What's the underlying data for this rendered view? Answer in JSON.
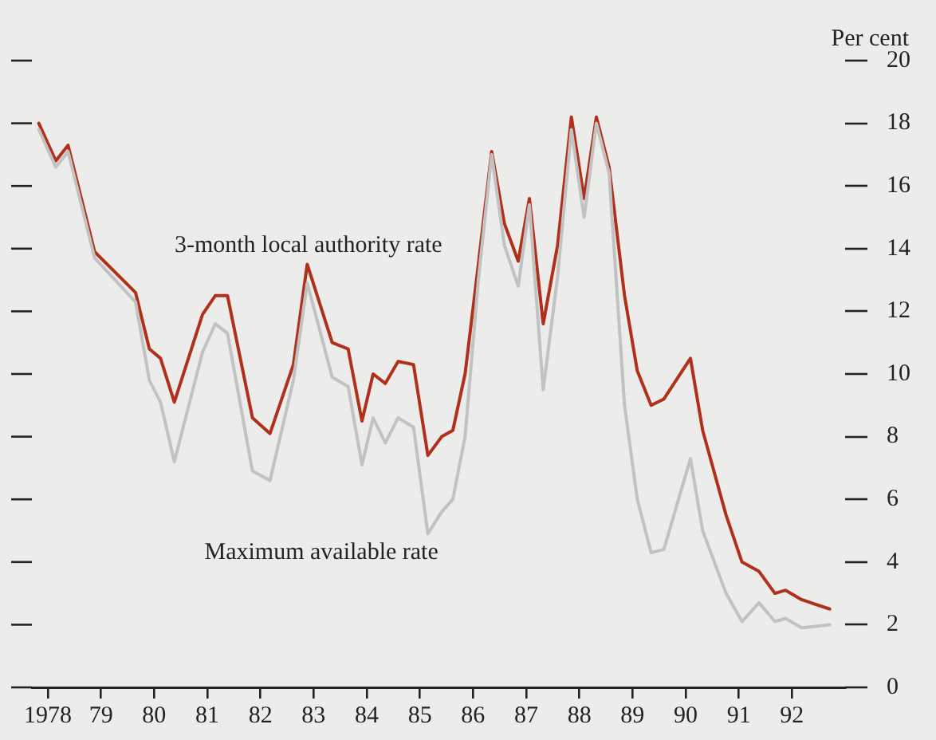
{
  "chart_data": {
    "type": "line",
    "ylabel": "Per cent",
    "x": [
      1977.83,
      1978.15,
      1978.38,
      1978.88,
      1979.65,
      1979.91,
      1980.12,
      1980.38,
      1980.91,
      1981.15,
      1981.38,
      1981.85,
      1982.18,
      1982.62,
      1982.88,
      1983.35,
      1983.65,
      1983.91,
      1984.12,
      1984.35,
      1984.59,
      1984.88,
      1985.15,
      1985.41,
      1985.62,
      1985.85,
      1986.1,
      1986.35,
      1986.59,
      1986.85,
      1987.06,
      1987.32,
      1987.59,
      1987.85,
      1988.09,
      1988.32,
      1988.56,
      1988.85,
      1989.09,
      1989.35,
      1989.59,
      1990.09,
      1990.32,
      1990.76,
      1991.06,
      1991.38,
      1991.68,
      1991.88,
      1992.18,
      1992.71
    ],
    "series": [
      {
        "name": "Maximum available rate",
        "color": "#c2c2c2",
        "values": [
          17.8,
          16.6,
          17.1,
          13.7,
          12.3,
          9.8,
          9.1,
          7.2,
          10.7,
          11.6,
          11.3,
          6.9,
          6.6,
          9.8,
          12.9,
          9.9,
          9.6,
          7.1,
          8.6,
          7.8,
          8.6,
          8.3,
          4.9,
          5.6,
          6.0,
          8.0,
          13.0,
          17.0,
          14.1,
          12.8,
          15.4,
          9.5,
          13.1,
          17.8,
          15.0,
          18.0,
          16.4,
          9.0,
          6.0,
          4.3,
          4.4,
          7.3,
          5.0,
          3.0,
          2.1,
          2.7,
          2.1,
          2.2,
          1.9,
          2.0
        ]
      },
      {
        "name": "3-month local authority rate",
        "color": "#b0301c",
        "values": [
          18.0,
          16.8,
          17.3,
          13.9,
          12.6,
          10.8,
          10.5,
          9.1,
          11.9,
          12.5,
          12.5,
          8.6,
          8.1,
          10.3,
          13.5,
          11.0,
          10.8,
          8.5,
          10.0,
          9.7,
          10.4,
          10.3,
          7.4,
          8.0,
          8.2,
          10.0,
          13.5,
          17.1,
          14.8,
          13.6,
          15.6,
          11.6,
          14.1,
          18.2,
          15.6,
          18.2,
          16.6,
          12.5,
          10.1,
          9.0,
          9.2,
          10.5,
          8.2,
          5.5,
          4.0,
          3.7,
          3.0,
          3.1,
          2.8,
          2.5
        ]
      }
    ],
    "xlim": [
      1977.7,
      1993.0
    ],
    "xticks": [
      1978,
      {
        "value": 1979,
        "label": "79"
      },
      {
        "value": 1980,
        "label": "80"
      },
      {
        "value": 1981,
        "label": "81"
      },
      {
        "value": 1982,
        "label": "82"
      },
      {
        "value": 1983,
        "label": "83"
      },
      {
        "value": 1984,
        "label": "84"
      },
      {
        "value": 1985,
        "label": "85"
      },
      {
        "value": 1986,
        "label": "86"
      },
      {
        "value": 1987,
        "label": "87"
      },
      {
        "value": 1988,
        "label": "88"
      },
      {
        "value": 1989,
        "label": "89"
      },
      {
        "value": 1990,
        "label": "90"
      },
      {
        "value": 1991,
        "label": "91"
      },
      {
        "value": 1992,
        "label": "92"
      }
    ],
    "ylim": [
      0,
      20
    ],
    "yticks": [
      0,
      2,
      4,
      6,
      8,
      10,
      12,
      14,
      16,
      18,
      20
    ],
    "grid": false,
    "legend": false,
    "marker": "none",
    "line_style": "solid"
  }
}
